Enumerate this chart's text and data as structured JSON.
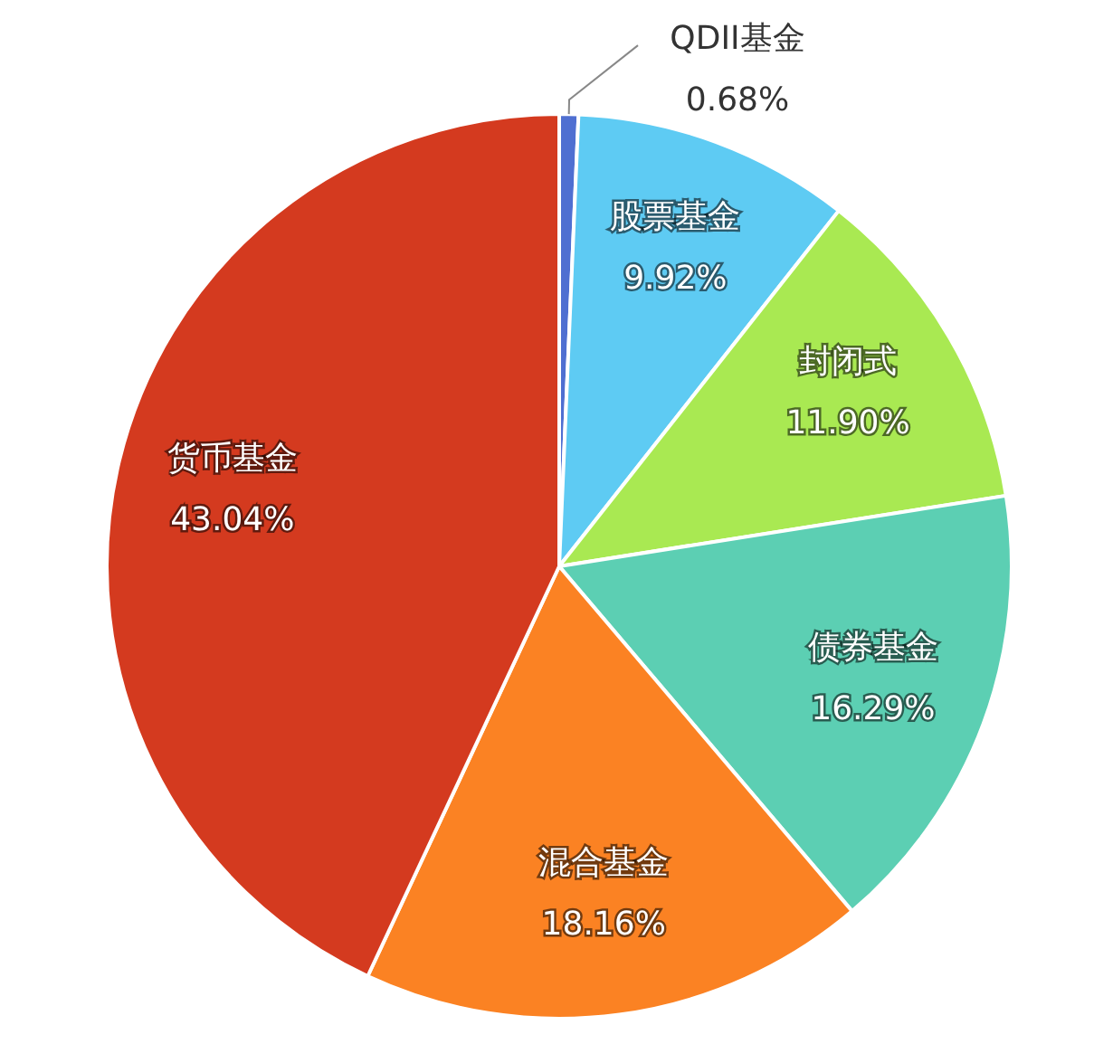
{
  "chart_data": {
    "type": "pie",
    "categories": [
      "QDII基金",
      "股票基金",
      "封闭式",
      "债券基金",
      "混合基金",
      "货币基金"
    ],
    "values": [
      0.68,
      9.92,
      11.9,
      16.29,
      18.16,
      43.04
    ],
    "value_labels": [
      "0.68%",
      "9.92%",
      "11.90%",
      "16.29%",
      "18.16%",
      "43.04%"
    ],
    "colors": [
      "#4f6fd1",
      "#5ecbf3",
      "#a9e952",
      "#5ccfb3",
      "#fb8223",
      "#d43a1f"
    ]
  }
}
